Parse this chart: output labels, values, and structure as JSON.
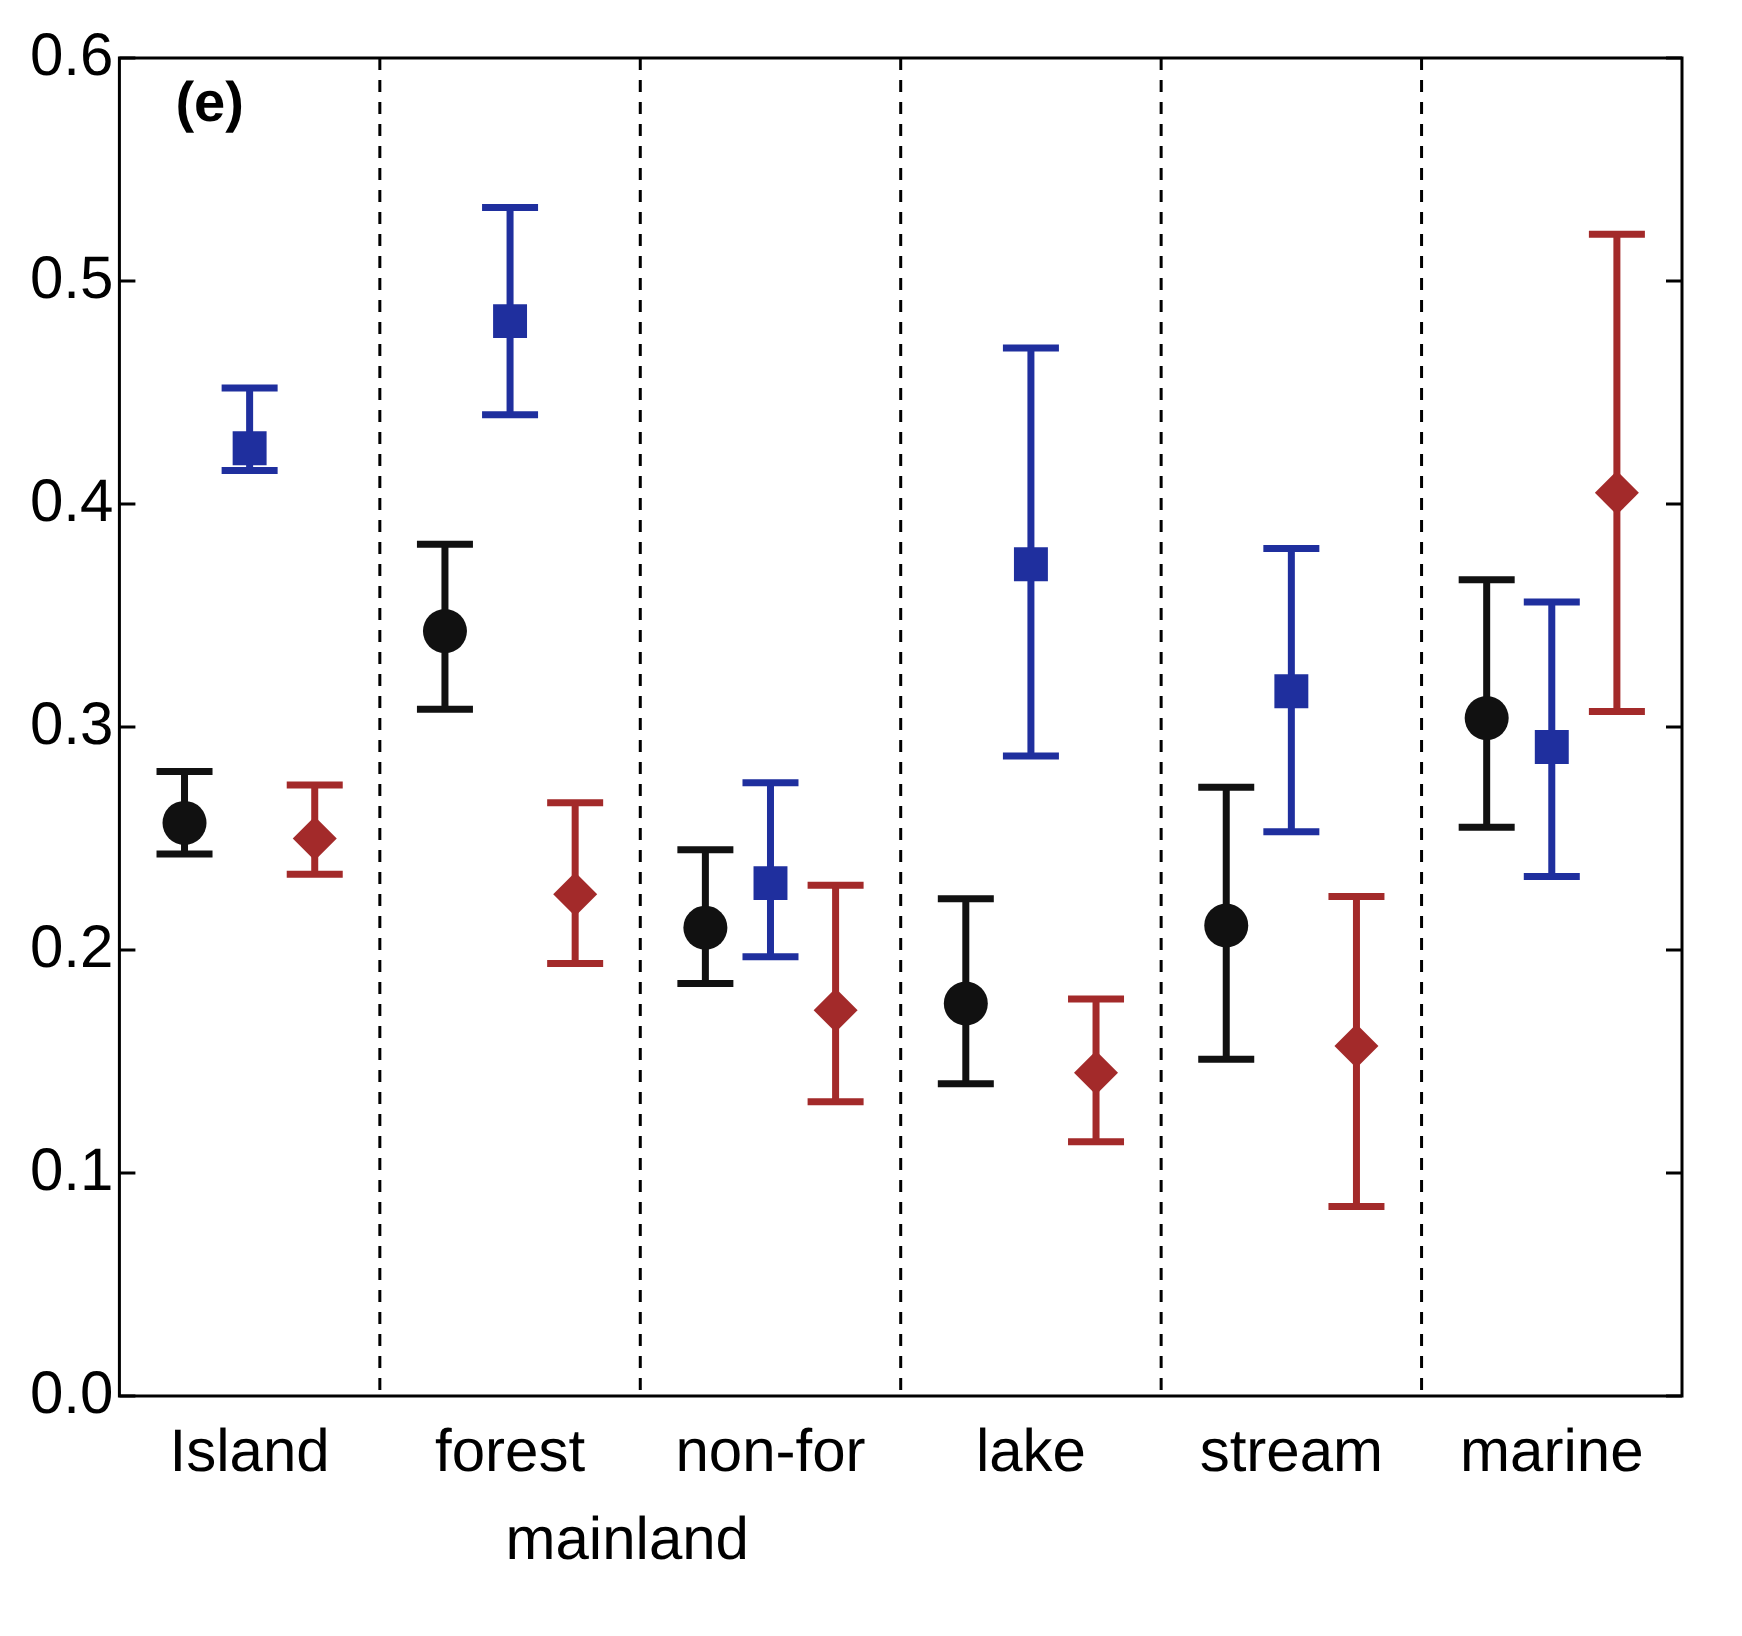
{
  "chart_data": {
    "type": "scatter",
    "categories": [
      "Island",
      "forest",
      "non-for",
      "lake",
      "stream",
      "marine"
    ],
    "series": [
      {
        "color": "#111111",
        "marker": "circle",
        "values": [
          0.257,
          0.343,
          0.21,
          0.176,
          0.211,
          0.304
        ],
        "errors": [
          [
            0.243,
            0.28
          ],
          [
            0.308,
            0.382
          ],
          [
            0.185,
            0.245
          ],
          [
            0.14,
            0.223
          ],
          [
            0.151,
            0.273
          ],
          [
            0.255,
            0.366
          ]
        ]
      },
      {
        "color": "#1f2f9e",
        "marker": "square",
        "values": [
          0.425,
          0.482,
          0.23,
          0.373,
          0.316,
          0.291
        ],
        "errors": [
          [
            0.415,
            0.452
          ],
          [
            0.44,
            0.533
          ],
          [
            0.197,
            0.275
          ],
          [
            0.287,
            0.47
          ],
          [
            0.253,
            0.38
          ],
          [
            0.233,
            0.356
          ]
        ]
      },
      {
        "color": "#a32a2a",
        "marker": "diamond",
        "values": [
          0.25,
          0.225,
          0.173,
          0.145,
          0.157,
          0.405
        ],
        "errors": [
          [
            0.234,
            0.274
          ],
          [
            0.194,
            0.266
          ],
          [
            0.132,
            0.229
          ],
          [
            0.114,
            0.178
          ],
          [
            0.085,
            0.224
          ],
          [
            0.307,
            0.521
          ]
        ]
      }
    ],
    "ylim": [
      0,
      0.6
    ],
    "yticks": [
      {
        "value": 0,
        "label": "0.0"
      },
      0.1,
      0.2,
      0.3,
      0.4,
      0.5,
      0.6
    ],
    "grid": false,
    "legend": false,
    "annotations": [
      "(e)",
      "mainland"
    ]
  }
}
